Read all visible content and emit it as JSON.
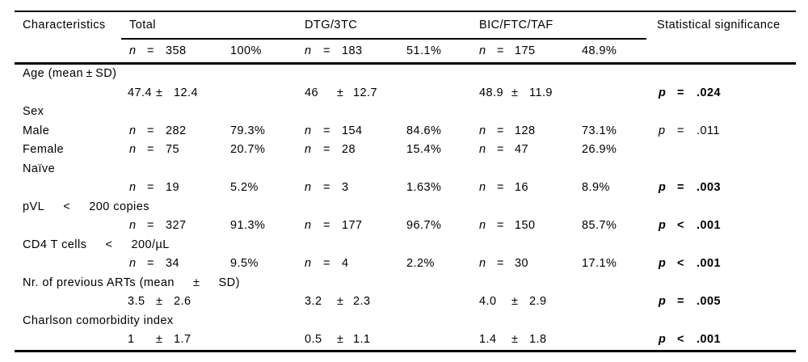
{
  "table": {
    "symbols": {
      "n": "n",
      "eq": "=",
      "pm": "±",
      "p": "p"
    },
    "header": {
      "characteristics": "Characteristics",
      "total": "Total",
      "dtg": "DTG/3TC",
      "bic": "BIC/FTC/TAF",
      "sig": "Statistical significance",
      "sub": {
        "total": {
          "count": "358",
          "pct": "100%"
        },
        "dtg": {
          "count": "183",
          "pct": "51.1%"
        },
        "bic": {
          "count": "175",
          "pct": "48.9%"
        }
      }
    },
    "rows": [
      {
        "kind": "label",
        "label": "Age (mean ± SD)"
      },
      {
        "kind": "mean",
        "total": {
          "v": "47.4",
          "sd": "12.4"
        },
        "dtg": {
          "v": "46",
          "sd": "12.7"
        },
        "bic": {
          "v": "48.9",
          "sd": "11.9"
        },
        "sig": {
          "op": "=",
          "val": ".024",
          "bold": true
        }
      },
      {
        "kind": "label",
        "label": "Sex"
      },
      {
        "kind": "counts",
        "label": "Male",
        "total": {
          "count": "282",
          "pct": "79.3%"
        },
        "dtg": {
          "count": "154",
          "pct": "84.6%"
        },
        "bic": {
          "count": "128",
          "pct": "73.1%"
        },
        "sig": {
          "op": "=",
          "val": ".011",
          "bold": false
        }
      },
      {
        "kind": "counts",
        "label": "Female",
        "total": {
          "count": "75",
          "pct": "20.7%"
        },
        "dtg": {
          "count": "28",
          "pct": "15.4%"
        },
        "bic": {
          "count": "47",
          "pct": "26.9%"
        }
      },
      {
        "kind": "label",
        "label": "Naïve"
      },
      {
        "kind": "counts",
        "label": "",
        "total": {
          "count": "19",
          "pct": "5.2%"
        },
        "dtg": {
          "count": "3",
          "pct": "1.63%"
        },
        "bic": {
          "count": "16",
          "pct": "8.9%"
        },
        "sig": {
          "op": "=",
          "val": ".003",
          "bold": true
        }
      },
      {
        "kind": "label",
        "label": "pVL   <   200 copies"
      },
      {
        "kind": "counts",
        "label": "",
        "total": {
          "count": "327",
          "pct": "91.3%"
        },
        "dtg": {
          "count": "177",
          "pct": "96.7%"
        },
        "bic": {
          "count": "150",
          "pct": "85.7%"
        },
        "sig": {
          "op": "<",
          "val": ".001",
          "bold": true
        }
      },
      {
        "kind": "label",
        "label": "CD4 T cells   <   200/µL"
      },
      {
        "kind": "counts",
        "label": "",
        "total": {
          "count": "34",
          "pct": "9.5%"
        },
        "dtg": {
          "count": "4",
          "pct": "2.2%"
        },
        "bic": {
          "count": "30",
          "pct": "17.1%"
        },
        "sig": {
          "op": "<",
          "val": ".001",
          "bold": true
        }
      },
      {
        "kind": "label",
        "label": "Nr. of previous ARTs (mean   ±   SD)"
      },
      {
        "kind": "mean",
        "total": {
          "v": "3.5",
          "sd": "2.6"
        },
        "dtg": {
          "v": "3.2",
          "sd": "2.3"
        },
        "bic": {
          "v": "4.0",
          "sd": "2.9"
        },
        "sig": {
          "op": "=",
          "val": ".005",
          "bold": true
        }
      },
      {
        "kind": "label",
        "label": "Charlson comorbidity index"
      },
      {
        "kind": "mean",
        "total": {
          "v": "1",
          "sd": "1.7"
        },
        "dtg": {
          "v": "0.5",
          "sd": "1.1"
        },
        "bic": {
          "v": "1.4",
          "sd": "1.8"
        },
        "sig": {
          "op": "<",
          "val": ".001",
          "bold": true
        }
      }
    ]
  }
}
